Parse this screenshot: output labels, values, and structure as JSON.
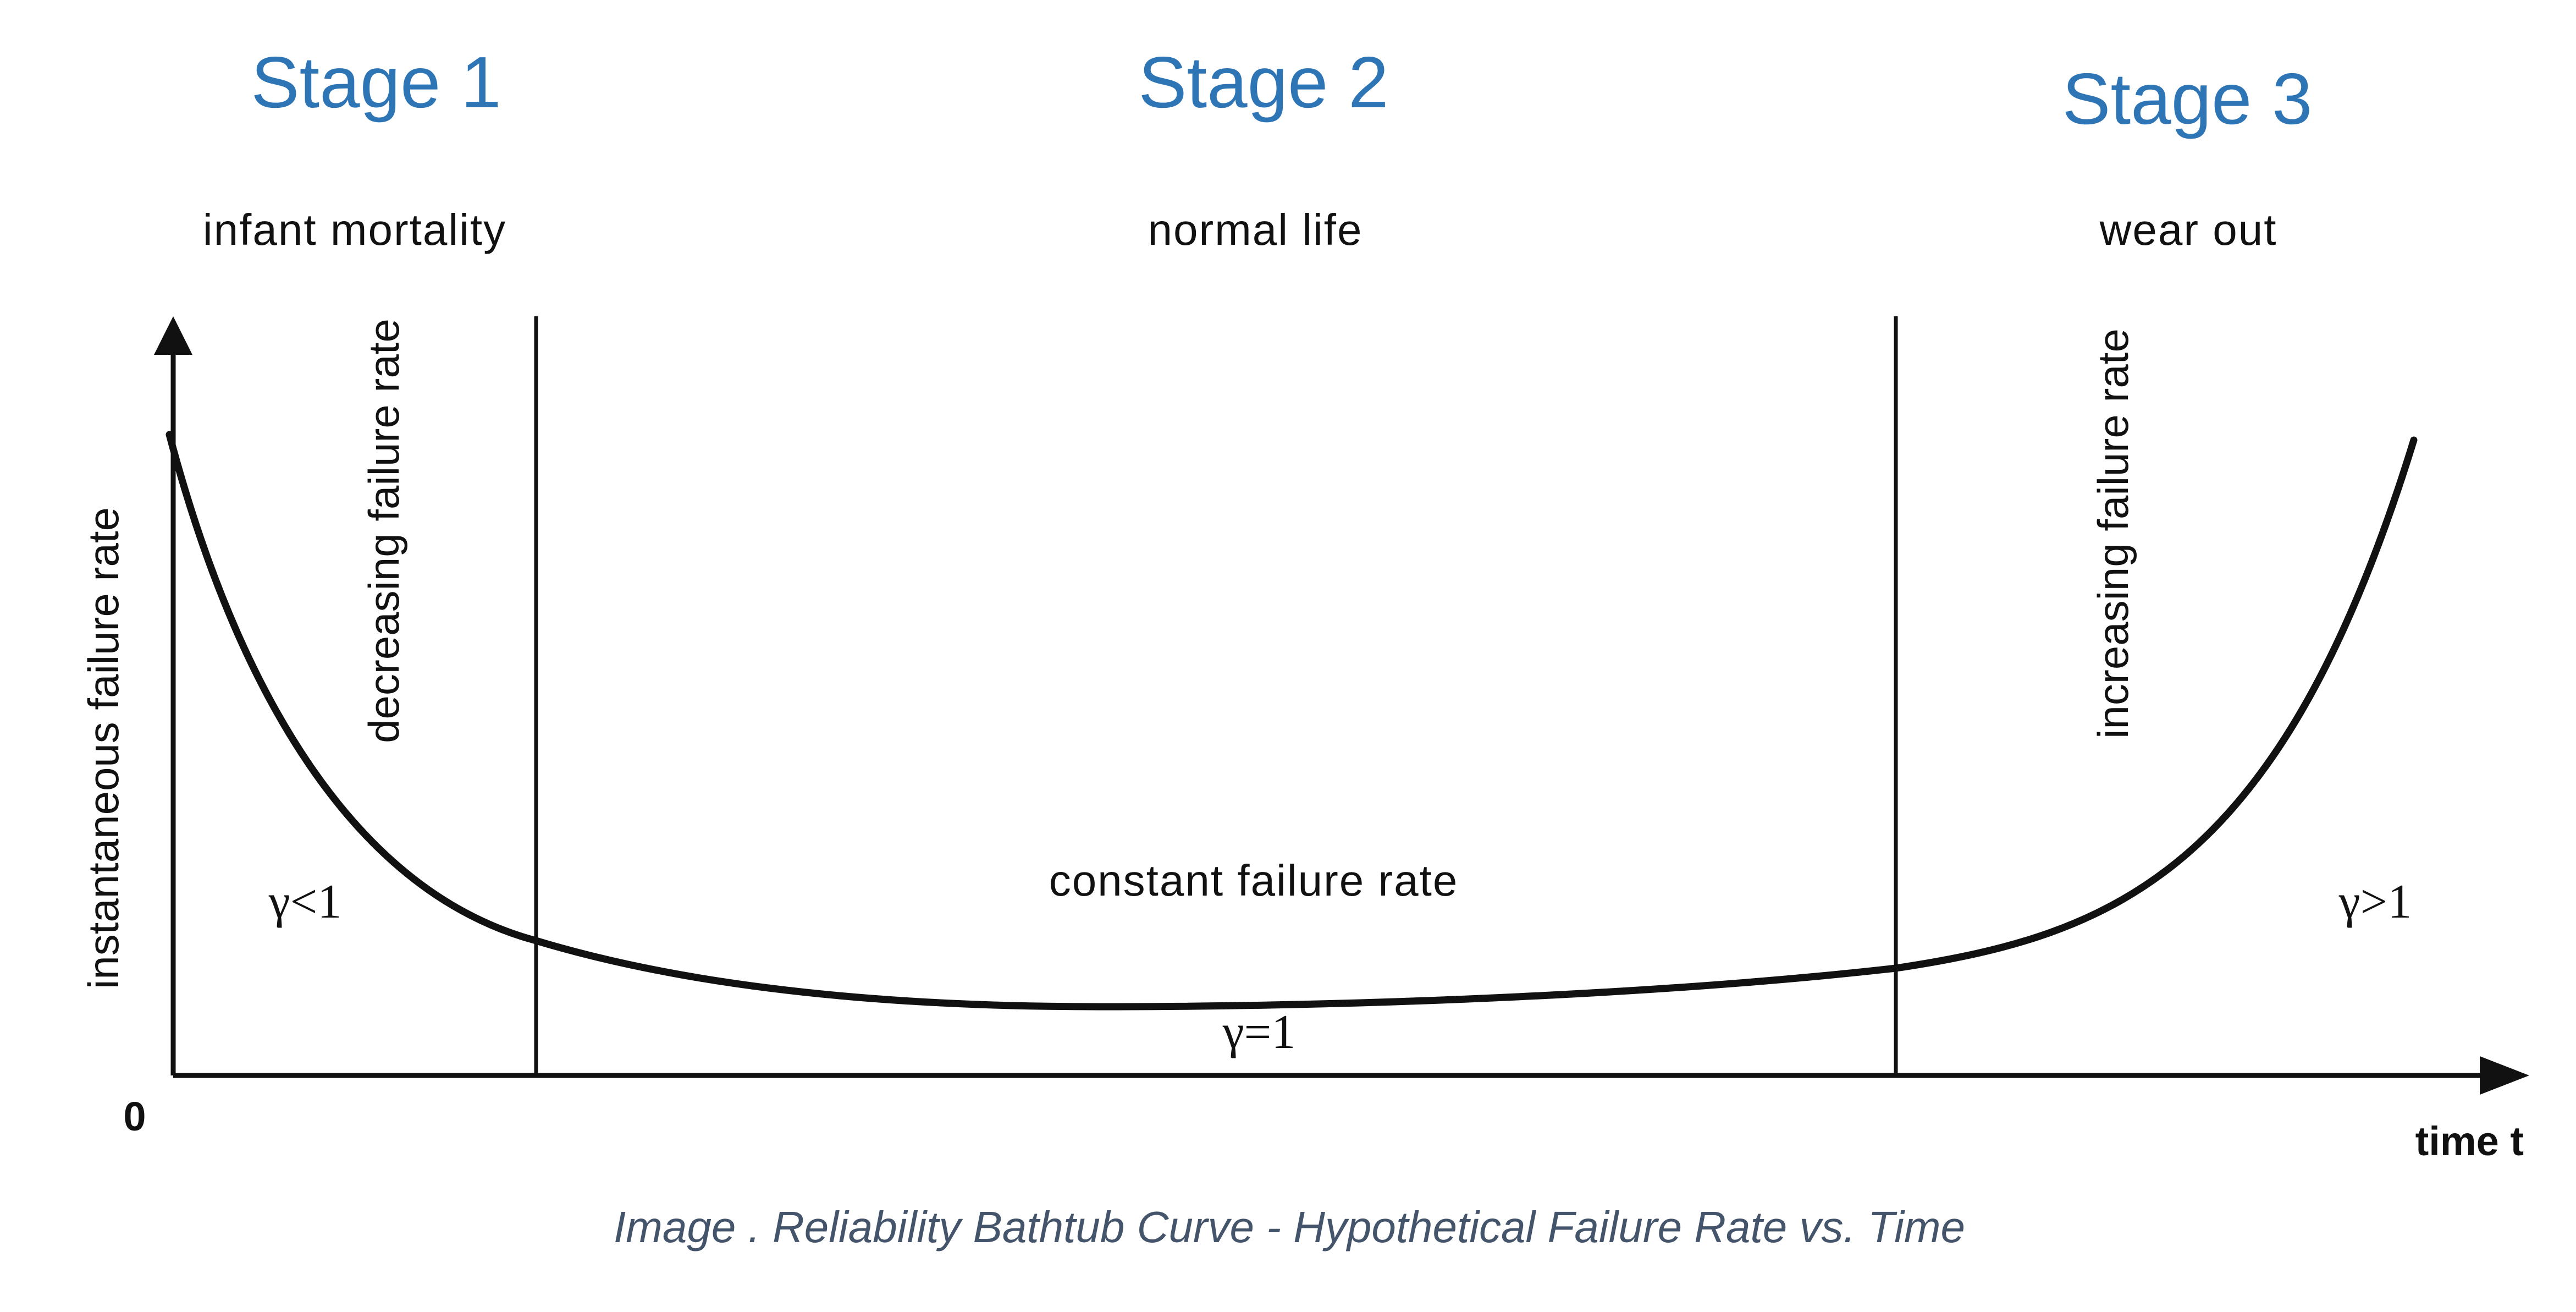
{
  "stages": [
    {
      "label": "Stage 1"
    },
    {
      "label": "Stage 2"
    },
    {
      "label": "Stage 3"
    }
  ],
  "phases": [
    {
      "label": "infant mortality"
    },
    {
      "label": "normal life"
    },
    {
      "label": "wear out"
    }
  ],
  "trend_labels": {
    "decreasing": "decreasing failure rate",
    "increasing": "increasing failure rate",
    "constant": "constant failure rate"
  },
  "gamma": {
    "less": "γ<1",
    "equal": "γ=1",
    "greater": "γ>1"
  },
  "axes": {
    "y_label": "instantaneous failure rate",
    "x_label": "time t",
    "origin": "0"
  },
  "caption": "Image . Reliability Bathtub Curve - Hypothetical Failure Rate vs. Time",
  "colors": {
    "stage_text": "#2e75b6",
    "caption_text": "#44546a",
    "line": "#111111"
  }
}
